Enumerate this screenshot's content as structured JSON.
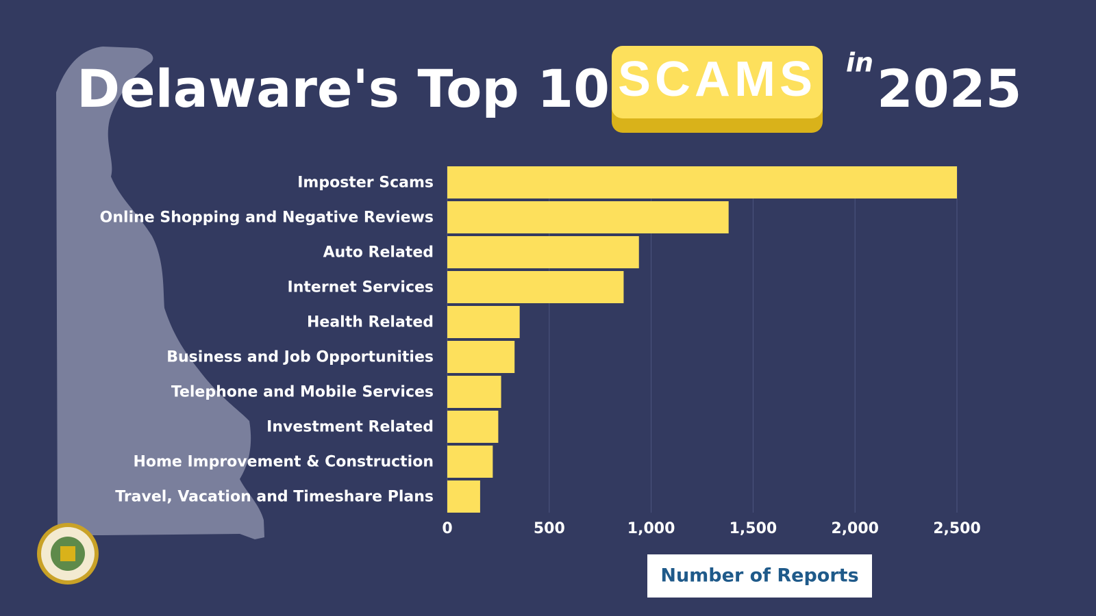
{
  "chart_data": {
    "type": "bar",
    "orientation": "horizontal",
    "title": "Delaware's Top 10",
    "title_badge": "SCAMS",
    "title_connector": "in",
    "title_year": "2025",
    "x_label": "Number of Reports",
    "categories": [
      "Imposter Scams",
      "Online Shopping and Negative Reviews",
      "Auto Related",
      "Internet Services",
      "Health Related",
      "Business and Job Opportunities",
      "Telephone and Mobile Services",
      "Investment Related",
      "Home Improvement & Construction",
      "Travel, Vacation and Timeshare Plans"
    ],
    "values": [
      2500,
      1380,
      940,
      865,
      355,
      330,
      264,
      250,
      223,
      161
    ],
    "color": "#fde05c",
    "xlim": [
      0,
      2500
    ],
    "xticks": [
      0,
      500,
      {
        "value": 1000,
        "label": "1,000"
      },
      {
        "value": 1500,
        "label": "1,500"
      },
      {
        "value": 2000,
        "label": "2,000"
      },
      {
        "value": 2500,
        "label": "2,500"
      }
    ],
    "grid": true
  }
}
